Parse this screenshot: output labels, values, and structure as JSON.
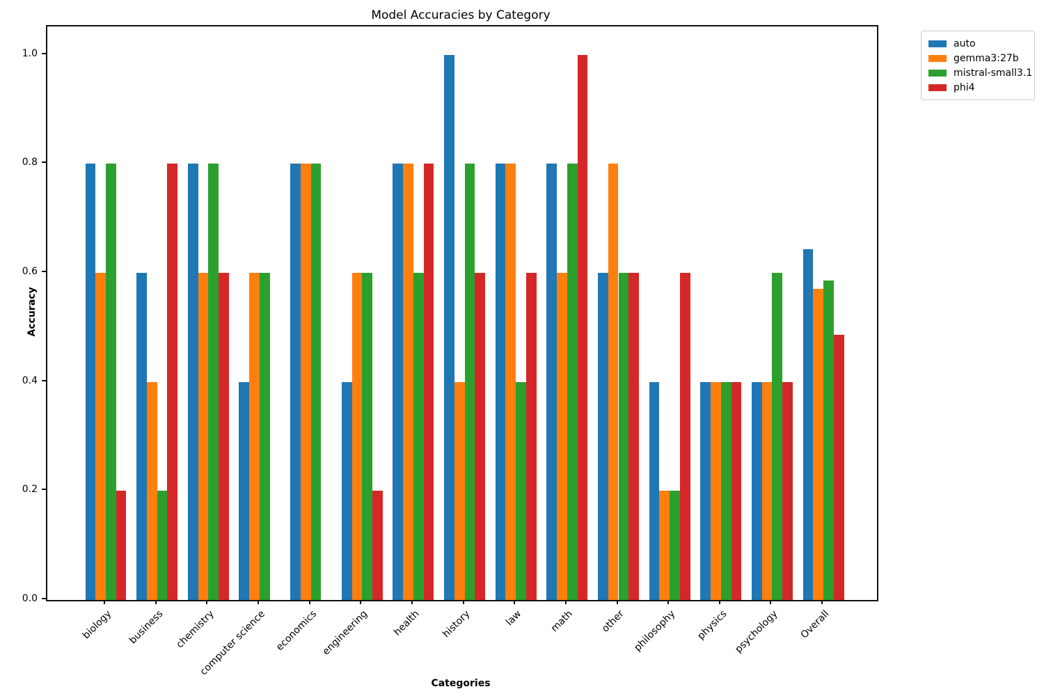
{
  "title": "Model Accuracies by Category",
  "xlabel": "Categories",
  "ylabel": "Accuracy",
  "chart_data": {
    "type": "bar",
    "title": "Model Accuracies by Category",
    "xlabel": "Categories",
    "ylabel": "Accuracy",
    "grid": false,
    "legend_position": "upper right, outside axes",
    "ylim": [
      0,
      1.052
    ],
    "yticks": [
      0.0,
      0.2,
      0.4,
      0.6,
      0.8,
      1.0
    ],
    "categories": [
      "biology",
      "business",
      "chemistry",
      "computer science",
      "economics",
      "engineering",
      "health",
      "history",
      "law",
      "math",
      "other",
      "philosophy",
      "physics",
      "psychology",
      "Overall"
    ],
    "series": [
      {
        "name": "auto",
        "color": "#1f77b4",
        "values": [
          0.8,
          0.6,
          0.8,
          0.4,
          0.8,
          0.4,
          0.8,
          1.0,
          0.8,
          0.8,
          0.6,
          0.4,
          0.4,
          0.4,
          0.643
        ]
      },
      {
        "name": "gemma3:27b",
        "color": "#ff7f0e",
        "values": [
          0.6,
          0.4,
          0.6,
          0.6,
          0.8,
          0.6,
          0.8,
          0.4,
          0.8,
          0.6,
          0.8,
          0.2,
          0.4,
          0.4,
          0.571
        ]
      },
      {
        "name": "mistral-small3.1",
        "color": "#2ca02c",
        "values": [
          0.8,
          0.2,
          0.8,
          0.6,
          0.8,
          0.6,
          0.6,
          0.8,
          0.4,
          0.8,
          0.6,
          0.2,
          0.4,
          0.6,
          0.586
        ]
      },
      {
        "name": "phi4",
        "color": "#d62728",
        "values": [
          0.2,
          0.8,
          0.6,
          0.0,
          0.0,
          0.2,
          0.8,
          0.6,
          0.6,
          1.0,
          0.6,
          0.6,
          0.4,
          0.4,
          0.486
        ]
      }
    ]
  }
}
